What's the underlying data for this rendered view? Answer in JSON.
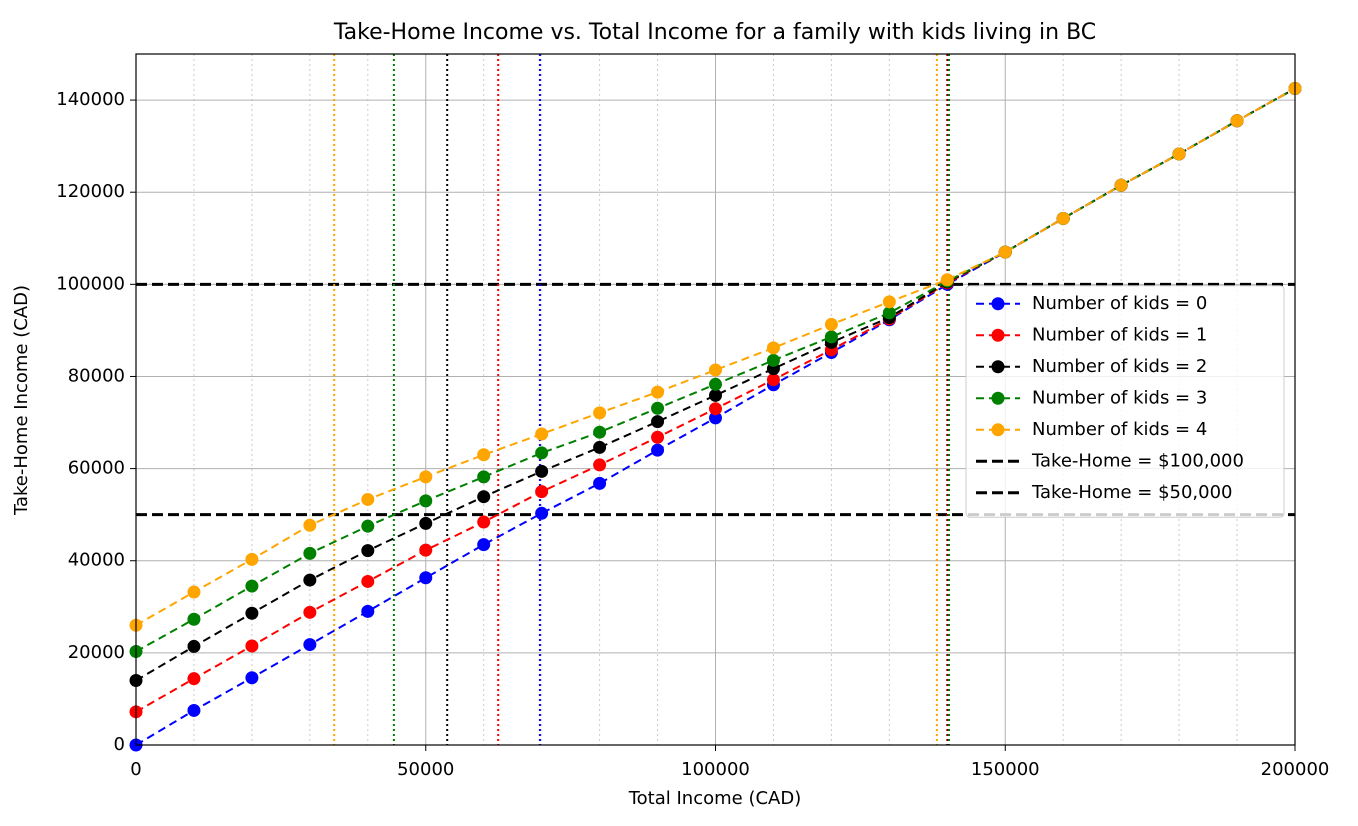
{
  "chart_data": {
    "type": "line",
    "title": "Take-Home Income vs. Total Income for a family with kids living in BC",
    "x_label": "Total Income (CAD)",
    "y_label": "Take-Home Income (CAD)",
    "x": [
      0,
      10000,
      20000,
      30000,
      40000,
      50000,
      60000,
      70000,
      80000,
      90000,
      100000,
      110000,
      120000,
      130000,
      140000,
      150000,
      160000,
      170000,
      180000,
      190000,
      200000
    ],
    "series": [
      {
        "name": "Number of kids = 0",
        "color": "#0000ff",
        "values": [
          0,
          7500,
          14600,
          21800,
          29000,
          36300,
          43500,
          50300,
          56800,
          64000,
          71000,
          78200,
          85200,
          92300,
          100000,
          107000,
          114300,
          121500,
          128300,
          135500,
          142500
        ],
        "crossings": [
          69700,
          140000
        ]
      },
      {
        "name": "Number of kids = 1",
        "color": "#ff0000",
        "values": [
          7200,
          14400,
          21500,
          28800,
          35500,
          42300,
          48400,
          55000,
          60800,
          66800,
          73000,
          79300,
          85800,
          92500,
          100300,
          107000,
          114300,
          121500,
          128300,
          135500,
          142500
        ],
        "crossings": [
          62500,
          140000
        ]
      },
      {
        "name": "Number of kids = 2",
        "color": "#000000",
        "values": [
          14000,
          21400,
          28600,
          35800,
          42200,
          48100,
          53900,
          59400,
          64600,
          70200,
          75900,
          81700,
          87400,
          92800,
          100500,
          107000,
          114300,
          121500,
          128300,
          135500,
          142500
        ],
        "crossings": [
          53700,
          140200
        ]
      },
      {
        "name": "Number of kids = 3",
        "color": "#008000",
        "values": [
          20300,
          27300,
          34500,
          41600,
          47500,
          53000,
          58200,
          63400,
          67900,
          73100,
          78300,
          83500,
          88600,
          93800,
          100700,
          107000,
          114300,
          121500,
          128300,
          135500,
          142500
        ],
        "crossings": [
          44500,
          140300
        ]
      },
      {
        "name": "Number of kids = 4",
        "color": "#ffa500",
        "values": [
          26000,
          33200,
          40300,
          47700,
          53300,
          58200,
          63000,
          67500,
          72100,
          76600,
          81400,
          86200,
          91300,
          96200,
          101000,
          107000,
          114300,
          121500,
          128300,
          135500,
          142500
        ],
        "crossings": [
          34200,
          138200
        ]
      }
    ],
    "hlines": [
      {
        "name": "Take-Home = $100,000",
        "value": 100000,
        "color": "#000000"
      },
      {
        "name": "Take-Home = $50,000",
        "value": 50000,
        "color": "#000000"
      }
    ],
    "xlim": [
      0,
      200000
    ],
    "ylim": [
      0,
      150000
    ],
    "xticks": [
      0,
      50000,
      100000,
      150000,
      200000
    ],
    "yticks": [
      0,
      20000,
      40000,
      60000,
      80000,
      100000,
      120000,
      140000
    ],
    "xminorticks": [
      10000,
      20000,
      30000,
      40000,
      60000,
      70000,
      80000,
      90000,
      110000,
      120000,
      130000,
      140000,
      160000,
      170000,
      180000,
      190000
    ],
    "grid": true,
    "legend": "center right"
  }
}
